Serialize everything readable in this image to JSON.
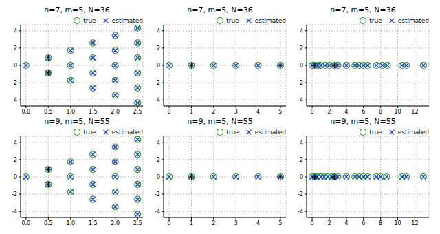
{
  "chart_data": [
    {
      "type": "scatter",
      "title": "n=7, m=5, N=36",
      "xlim": [
        -0.12,
        2.62
      ],
      "ylim": [
        -4.7,
        4.7
      ],
      "xticks": [
        {
          "value": 0,
          "label": "0.0"
        },
        0.5,
        {
          "value": 1,
          "label": "1.0"
        },
        1.5,
        {
          "value": 2,
          "label": "2.0"
        },
        2.5
      ],
      "yticks": [
        -4,
        -2,
        0,
        2,
        4
      ],
      "grid": true,
      "legend": "upper right",
      "series": [
        {
          "name": "true",
          "color": "#2ca02c",
          "marker": "circle",
          "x": [
            0,
            0.5,
            0.5,
            1,
            1,
            1,
            1.5,
            1.5,
            1.5,
            1.5,
            2,
            2,
            2,
            2,
            2,
            2.5,
            2.5,
            2.5,
            2.5,
            2.5,
            2.5
          ],
          "values": [
            0,
            0.866,
            -0.866,
            0,
            1.732,
            -1.732,
            0.866,
            -0.866,
            2.598,
            -2.598,
            0,
            1.732,
            -1.732,
            3.464,
            -3.464,
            0.866,
            -0.866,
            2.598,
            -2.598,
            4.33,
            -4.33
          ]
        },
        {
          "name": "estimated",
          "color": "#1f3fbf",
          "marker": "x",
          "x": [
            0,
            0.5,
            0.5,
            1,
            1,
            1,
            1.5,
            1.5,
            1.5,
            1.5,
            2,
            2,
            2,
            2,
            2,
            2.5,
            2.5,
            2.5,
            2.5,
            2.5,
            2.5
          ],
          "values": [
            0,
            0.866,
            -0.866,
            0,
            1.732,
            -1.732,
            0.866,
            -0.866,
            2.598,
            -2.598,
            0,
            1.732,
            -1.732,
            3.464,
            -3.464,
            0.866,
            -0.866,
            2.598,
            -2.598,
            4.33,
            -4.33
          ]
        },
        {
          "color": "#000000",
          "marker": "plus",
          "x": [
            0.5,
            0.5
          ],
          "values": [
            0.866,
            -0.866
          ]
        }
      ]
    },
    {
      "type": "scatter",
      "title": "n=7, m=5, N=36",
      "xlim": [
        -0.25,
        5.25
      ],
      "ylim": [
        -4.7,
        4.7
      ],
      "xticks": [
        0,
        1,
        2,
        3,
        4,
        5
      ],
      "yticks": [
        -4,
        -2,
        0,
        2,
        4
      ],
      "grid": true,
      "legend": "upper right",
      "series": [
        {
          "name": "true",
          "color": "#2ca02c",
          "marker": "circle",
          "x": [
            0,
            1,
            2,
            3,
            4,
            5
          ],
          "values": [
            0,
            0,
            0,
            0,
            0,
            0
          ]
        },
        {
          "name": "estimated",
          "color": "#1f3fbf",
          "marker": "x",
          "x": [
            0,
            1,
            2,
            3,
            4,
            5
          ],
          "values": [
            0,
            0,
            0,
            0,
            0,
            0
          ]
        },
        {
          "color": "#000000",
          "marker": "plus",
          "x": [
            1,
            5
          ],
          "values": [
            0,
            0
          ]
        }
      ]
    },
    {
      "type": "scatter",
      "title": "n=7, m=5, N=36",
      "xlim": [
        -0.65,
        13.65
      ],
      "ylim": [
        -4.7,
        4.7
      ],
      "xticks": [
        0,
        2,
        4,
        6,
        8,
        10,
        12
      ],
      "yticks": [
        -4,
        -2,
        0,
        2,
        4
      ],
      "grid": true,
      "legend": "upper right",
      "series": [
        {
          "name": "true",
          "color": "#2ca02c",
          "marker": "circle",
          "x": [
            0,
            0.3,
            0.7,
            1,
            1.5,
            2,
            2.6,
            3,
            4,
            5,
            5.5,
            6,
            6.5,
            7.5,
            8.2,
            8.8,
            10.5,
            11,
            13
          ],
          "values": [
            0,
            0,
            0,
            0,
            0,
            0,
            0,
            0,
            0,
            0,
            0,
            0,
            0,
            0,
            0,
            0,
            0,
            0,
            0
          ]
        },
        {
          "name": "estimated",
          "color": "#1f3fbf",
          "marker": "x",
          "x": [
            0,
            0.3,
            0.7,
            1,
            1.5,
            2,
            2.6,
            3,
            4,
            5,
            5.5,
            6,
            6.5,
            7.5,
            8.2,
            8.8,
            10.5,
            11,
            13
          ],
          "values": [
            0,
            0,
            0,
            0,
            0,
            0,
            0,
            0,
            0,
            0,
            0,
            0,
            0,
            0,
            0,
            0,
            0,
            0,
            0
          ]
        },
        {
          "color": "#000000",
          "marker": "plus",
          "x": [
            0.3,
            2.6
          ],
          "values": [
            0,
            0
          ]
        }
      ]
    },
    {
      "type": "scatter",
      "title": "n=9, m=5, N=55",
      "xlim": [
        -0.12,
        2.62
      ],
      "ylim": [
        -4.7,
        4.7
      ],
      "xticks": [
        {
          "value": 0,
          "label": "0.0"
        },
        0.5,
        {
          "value": 1,
          "label": "1.0"
        },
        1.5,
        {
          "value": 2,
          "label": "2.0"
        },
        2.5
      ],
      "yticks": [
        -4,
        -2,
        0,
        2,
        4
      ],
      "grid": true,
      "legend": "upper right",
      "series": [
        {
          "name": "true",
          "color": "#2ca02c",
          "marker": "circle",
          "x": [
            0,
            0.5,
            0.5,
            1,
            1,
            1,
            1.5,
            1.5,
            1.5,
            1.5,
            2,
            2,
            2,
            2,
            2,
            2.5,
            2.5,
            2.5,
            2.5,
            2.5,
            2.5
          ],
          "values": [
            0,
            0.866,
            -0.866,
            0,
            1.732,
            -1.732,
            0.866,
            -0.866,
            2.598,
            -2.598,
            0,
            1.732,
            -1.732,
            3.464,
            -3.464,
            0.866,
            -0.866,
            2.598,
            -2.598,
            4.33,
            -4.33
          ]
        },
        {
          "name": "estimated",
          "color": "#1f3fbf",
          "marker": "x",
          "x": [
            0,
            0.5,
            0.5,
            1,
            1,
            1,
            1.5,
            1.5,
            1.5,
            1.5,
            2,
            2,
            2,
            2,
            2,
            2.5,
            2.5,
            2.5,
            2.5,
            2.5,
            2.5
          ],
          "values": [
            0,
            0.866,
            -0.866,
            0,
            1.732,
            -1.732,
            0.866,
            -0.866,
            2.598,
            -2.598,
            0,
            1.732,
            -1.732,
            3.464,
            -3.464,
            0.866,
            -0.866,
            2.598,
            -2.598,
            4.33,
            -4.33
          ]
        },
        {
          "color": "#000000",
          "marker": "plus",
          "x": [
            0.5,
            0.5
          ],
          "values": [
            0.866,
            -0.866
          ]
        }
      ]
    },
    {
      "type": "scatter",
      "title": "n=9, m=5, N=55",
      "xlim": [
        -0.25,
        5.25
      ],
      "ylim": [
        -4.7,
        4.7
      ],
      "xticks": [
        0,
        1,
        2,
        3,
        4,
        5
      ],
      "yticks": [
        -4,
        -2,
        0,
        2,
        4
      ],
      "grid": true,
      "legend": "upper right",
      "series": [
        {
          "name": "true",
          "color": "#2ca02c",
          "marker": "circle",
          "x": [
            0,
            1,
            2,
            3,
            4,
            5
          ],
          "values": [
            0,
            0,
            0,
            0,
            0,
            0
          ]
        },
        {
          "name": "estimated",
          "color": "#1f3fbf",
          "marker": "x",
          "x": [
            0,
            1,
            2,
            3,
            4,
            5
          ],
          "values": [
            0,
            0,
            0,
            0,
            0,
            0
          ]
        },
        {
          "color": "#000000",
          "marker": "plus",
          "x": [
            1,
            5
          ],
          "values": [
            0,
            0
          ]
        }
      ]
    },
    {
      "type": "scatter",
      "title": "n=9, m=5, N=55",
      "xlim": [
        -0.65,
        13.65
      ],
      "ylim": [
        -4.7,
        4.7
      ],
      "xticks": [
        0,
        2,
        4,
        6,
        8,
        10,
        12
      ],
      "yticks": [
        -4,
        -2,
        0,
        2,
        4
      ],
      "grid": true,
      "legend": "upper right",
      "series": [
        {
          "name": "true",
          "color": "#2ca02c",
          "marker": "circle",
          "x": [
            0,
            0.3,
            0.6,
            1,
            1.4,
            1.8,
            2.3,
            2.6,
            3,
            4,
            5,
            5.5,
            6,
            6.5,
            7.5,
            8,
            8.7,
            10.5,
            11,
            13
          ],
          "values": [
            0,
            0,
            0,
            0,
            0,
            0,
            0,
            0,
            0,
            0,
            0,
            0,
            0,
            0,
            0,
            0,
            0,
            0,
            0,
            0
          ]
        },
        {
          "name": "estimated",
          "color": "#1f3fbf",
          "marker": "x",
          "x": [
            0,
            0.3,
            0.6,
            1,
            1.4,
            1.8,
            2.3,
            2.6,
            3,
            4,
            5,
            5.5,
            6,
            6.5,
            7.5,
            8,
            8.7,
            10.5,
            11,
            13
          ],
          "values": [
            0,
            0,
            0,
            0,
            0,
            0,
            0,
            0,
            0,
            0,
            0,
            0,
            0,
            0,
            0,
            0,
            0,
            0,
            0,
            0
          ]
        },
        {
          "color": "#000000",
          "marker": "plus",
          "x": [
            0.3,
            2.6
          ],
          "values": [
            0,
            0
          ]
        }
      ]
    }
  ]
}
